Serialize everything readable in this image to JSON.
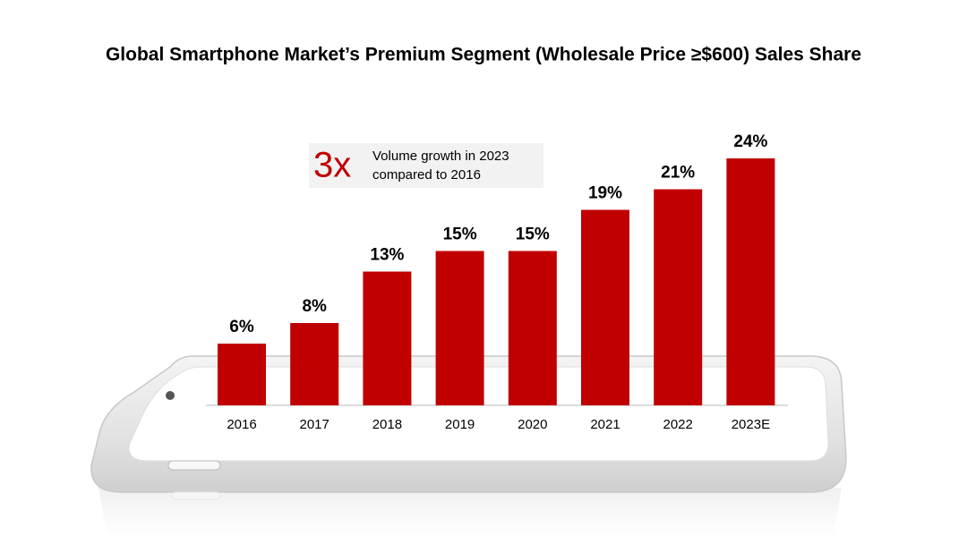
{
  "chart_data": {
    "type": "bar",
    "title": "Global Smartphone Market’s Premium Segment (Wholesale Price ≥$600) Sales Share",
    "categories": [
      "2016",
      "2017",
      "2018",
      "2019",
      "2020",
      "2021",
      "2022",
      "2023E"
    ],
    "values": [
      6,
      8,
      13,
      15,
      15,
      19,
      21,
      24
    ],
    "value_labels": [
      "6%",
      "8%",
      "13%",
      "15%",
      "15%",
      "19%",
      "21%",
      "24%"
    ],
    "color": "#c00000",
    "annotation": {
      "emphasis": "3x",
      "lines": [
        "Volume growth in 2023",
        "compared to 2016"
      ]
    }
  }
}
